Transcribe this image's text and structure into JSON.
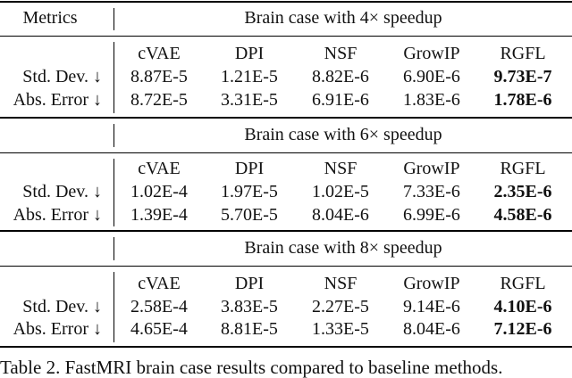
{
  "header": {
    "metrics_label": "Metrics"
  },
  "columns": [
    "cVAE",
    "DPI",
    "NSF",
    "GrowIP",
    "RGFL"
  ],
  "sections": [
    {
      "title": "Brain case with 4× speedup",
      "rows": [
        {
          "label": "Std. Dev. ↓",
          "values": [
            "8.87E-5",
            "1.21E-5",
            "8.82E-6",
            "6.90E-6",
            "9.73E-7"
          ]
        },
        {
          "label": "Abs. Error ↓",
          "values": [
            "8.72E-5",
            "3.31E-5",
            "6.91E-6",
            "1.83E-6",
            "1.78E-6"
          ]
        }
      ]
    },
    {
      "title": "Brain case with 6× speedup",
      "rows": [
        {
          "label": "Std. Dev. ↓",
          "values": [
            "1.02E-4",
            "1.97E-5",
            "1.02E-5",
            "7.33E-6",
            "2.35E-6"
          ]
        },
        {
          "label": "Abs. Error ↓",
          "values": [
            "1.39E-4",
            "5.70E-5",
            "8.04E-6",
            "6.99E-6",
            "4.58E-6"
          ]
        }
      ]
    },
    {
      "title": "Brain case with 8× speedup",
      "rows": [
        {
          "label": "Std. Dev. ↓",
          "values": [
            "2.58E-4",
            "3.83E-5",
            "2.27E-5",
            "9.14E-6",
            "4.10E-6"
          ]
        },
        {
          "label": "Abs. Error ↓",
          "values": [
            "4.65E-4",
            "8.81E-5",
            "1.33E-5",
            "8.04E-6",
            "7.12E-6"
          ]
        }
      ]
    }
  ],
  "caption": "Table 2. FastMRI brain case results compared to baseline methods."
}
